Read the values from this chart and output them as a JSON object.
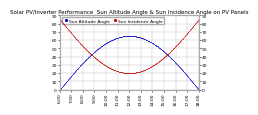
{
  "title": "Solar PV/Inverter Performance  Sun Altitude Angle & Sun Incidence Angle on PV Panels",
  "legend_labels": [
    "Sun Altitude Angle",
    "Sun Incidence Angle"
  ],
  "line_colors": [
    "#0000cc",
    "#cc0000"
  ],
  "background_color": "#ffffff",
  "plot_bg_color": "#ffffff",
  "grid_color": "#aaaaaa",
  "text_color": "#000000",
  "xlim": [
    0,
    1
  ],
  "ylim_left": [
    0,
    90
  ],
  "ylim_right": [
    0,
    90
  ],
  "title_fontsize": 4.0,
  "tick_fontsize": 3.2,
  "legend_fontsize": 3.2,
  "x_tick_labels": [
    "6:00",
    "7:00",
    "8:00",
    "9:00",
    "10:00",
    "11:00",
    "12:00",
    "13:00",
    "14:00",
    "15:00",
    "16:00",
    "17:00",
    "18:00"
  ],
  "y_ticks_left": [
    0,
    10,
    20,
    30,
    40,
    50,
    60,
    70,
    80,
    90
  ],
  "y_ticks_right": [
    0,
    10,
    20,
    30,
    40,
    50,
    60,
    70,
    80,
    90
  ]
}
